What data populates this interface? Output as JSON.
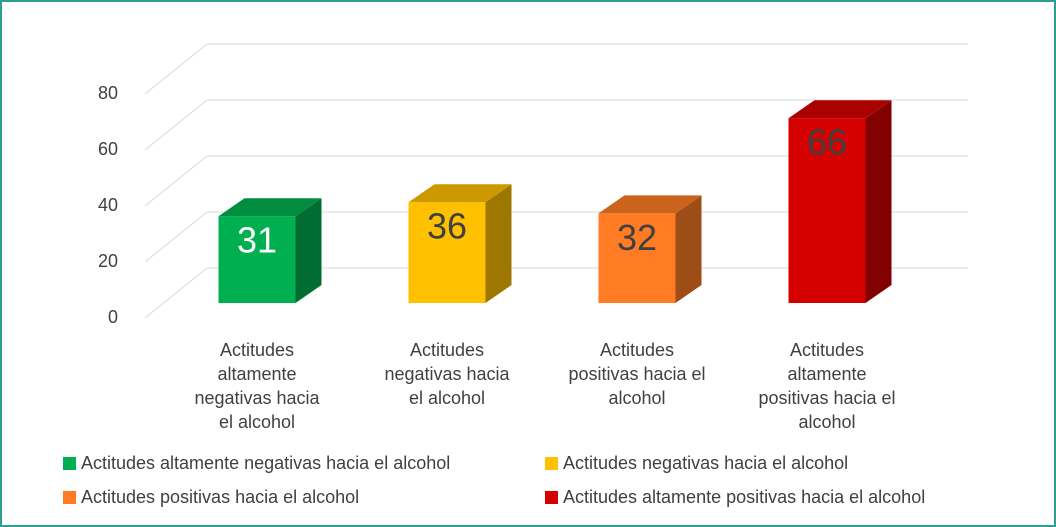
{
  "chart_data": {
    "type": "bar3d",
    "categories": [
      "Actitudes altamente negativas hacia el alcohol",
      "Actitudes negativas hacia el alcohol",
      "Actitudes positivas hacia el alcohol",
      "Actitudes altamente positivas hacia el alcohol"
    ],
    "series": [
      {
        "name": "Actitudes altamente negativas hacia el alcohol",
        "color": "#00b050",
        "values": [
          31,
          null,
          null,
          null
        ]
      },
      {
        "name": "Actitudes negativas hacia el alcohol",
        "color": "#ffc000",
        "values": [
          null,
          36,
          null,
          null
        ]
      },
      {
        "name": "Actitudes positivas hacia el alcohol",
        "color": "#ff7c24",
        "values": [
          null,
          null,
          32,
          null
        ]
      },
      {
        "name": "Actitudes altamente positivas hacia el alcohol",
        "color": "#d40000",
        "values": [
          null,
          null,
          null,
          66
        ]
      }
    ],
    "ylim": [
      0,
      80
    ],
    "yticks": [
      0,
      20,
      40,
      60,
      80
    ],
    "grid": true
  }
}
